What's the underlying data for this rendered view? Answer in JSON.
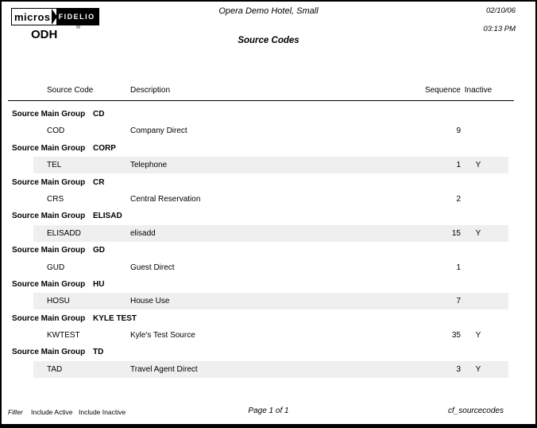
{
  "header": {
    "logo": {
      "micros": "micros",
      "fidelio": "FIDELIO",
      "registered_mark": "®"
    },
    "property_code": "ODH",
    "hotel_name": "Opera Demo Hotel, Small",
    "report_title": "Source Codes",
    "date": "02/10/06",
    "time": "03:13 PM"
  },
  "table": {
    "columns": [
      "Source Code",
      "Description",
      "Sequence",
      "Inactive"
    ],
    "group_label": "Source Main Group",
    "rows": [
      {
        "type": "group",
        "value": "CD"
      },
      {
        "type": "data",
        "source_code": "COD",
        "description": "Company Direct",
        "sequence": "9",
        "inactive": "",
        "shaded": false
      },
      {
        "type": "group",
        "value": "CORP"
      },
      {
        "type": "data",
        "source_code": "TEL",
        "description": "Telephone",
        "sequence": "1",
        "inactive": "Y",
        "shaded": true
      },
      {
        "type": "group",
        "value": "CR"
      },
      {
        "type": "data",
        "source_code": "CRS",
        "description": "Central Reservation",
        "sequence": "2",
        "inactive": "",
        "shaded": false
      },
      {
        "type": "group",
        "value": "ELISAD"
      },
      {
        "type": "data",
        "source_code": "ELISADD",
        "description": "elisadd",
        "sequence": "15",
        "inactive": "Y",
        "shaded": true
      },
      {
        "type": "group",
        "value": "GD"
      },
      {
        "type": "data",
        "source_code": "GUD",
        "description": "Guest Direct",
        "sequence": "1",
        "inactive": "",
        "shaded": false
      },
      {
        "type": "group",
        "value": "HU"
      },
      {
        "type": "data",
        "source_code": "HOSU",
        "description": "House Use",
        "sequence": "7",
        "inactive": "",
        "shaded": true
      },
      {
        "type": "group",
        "value": "KYLE TEST"
      },
      {
        "type": "data",
        "source_code": "KWTEST",
        "description": "Kyle's Test Source",
        "sequence": "35",
        "inactive": "Y",
        "shaded": false
      },
      {
        "type": "group",
        "value": "TD"
      },
      {
        "type": "data",
        "source_code": "TAD",
        "description": "Travel Agent Direct",
        "sequence": "3",
        "inactive": "Y",
        "shaded": true
      }
    ]
  },
  "footer": {
    "filter_label": "Filter",
    "filter_items": [
      "Include Active",
      "Include Inactive"
    ],
    "page_info": "Page 1 of 1",
    "report_file": "cf_sourcecodes"
  },
  "colors": {
    "shaded_row": "#efefef",
    "border": "#000000"
  }
}
